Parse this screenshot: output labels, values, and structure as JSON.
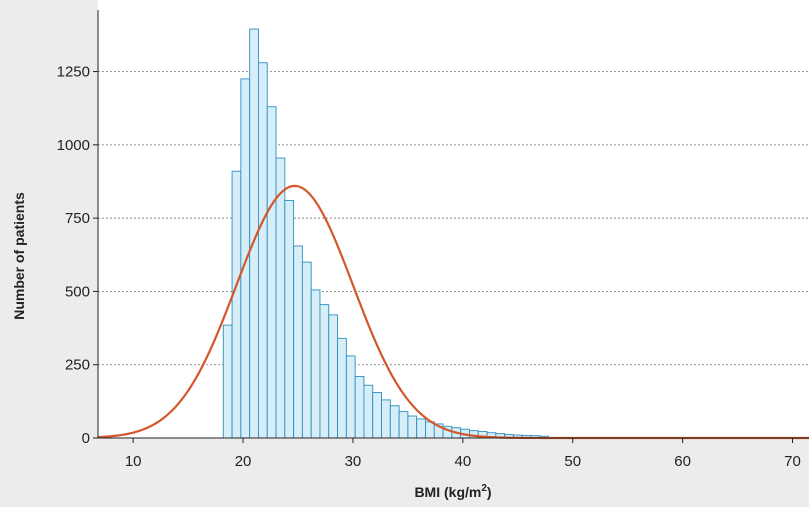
{
  "chart_data": {
    "type": "bar",
    "title": "",
    "xlabel": "BMI (kg/m",
    "xlabel_sup": "2",
    "xlabel_close": ")",
    "ylabel": "Number of patients",
    "xlim": [
      6.8,
      71.5
    ],
    "ylim": [
      0,
      1460
    ],
    "x_ticks": [
      10,
      20,
      30,
      40,
      50,
      60,
      70
    ],
    "y_ticks": [
      0,
      250,
      500,
      750,
      1000,
      1250
    ],
    "grid": "horizontal dotted",
    "histogram": {
      "bin_start": 18.2,
      "bin_width": 0.8,
      "counts": [
        385,
        910,
        1225,
        1395,
        1280,
        1130,
        955,
        810,
        655,
        600,
        505,
        455,
        420,
        340,
        280,
        210,
        180,
        155,
        130,
        110,
        90,
        75,
        65,
        55,
        48,
        40,
        35,
        30,
        25,
        22,
        18,
        15,
        12,
        10,
        9,
        8,
        6
      ]
    },
    "fit_curve": {
      "type": "normal",
      "mean": 24.7,
      "peak": 860,
      "sd": 5.3
    },
    "colors": {
      "bar_fill": "#d6eef8",
      "bar_edge": "#2e8fbf",
      "curve": "#d4572b",
      "grid": "#8a8a8a",
      "axis": "#222222",
      "background": "#ececec",
      "plot_background": "#ffffff"
    }
  }
}
